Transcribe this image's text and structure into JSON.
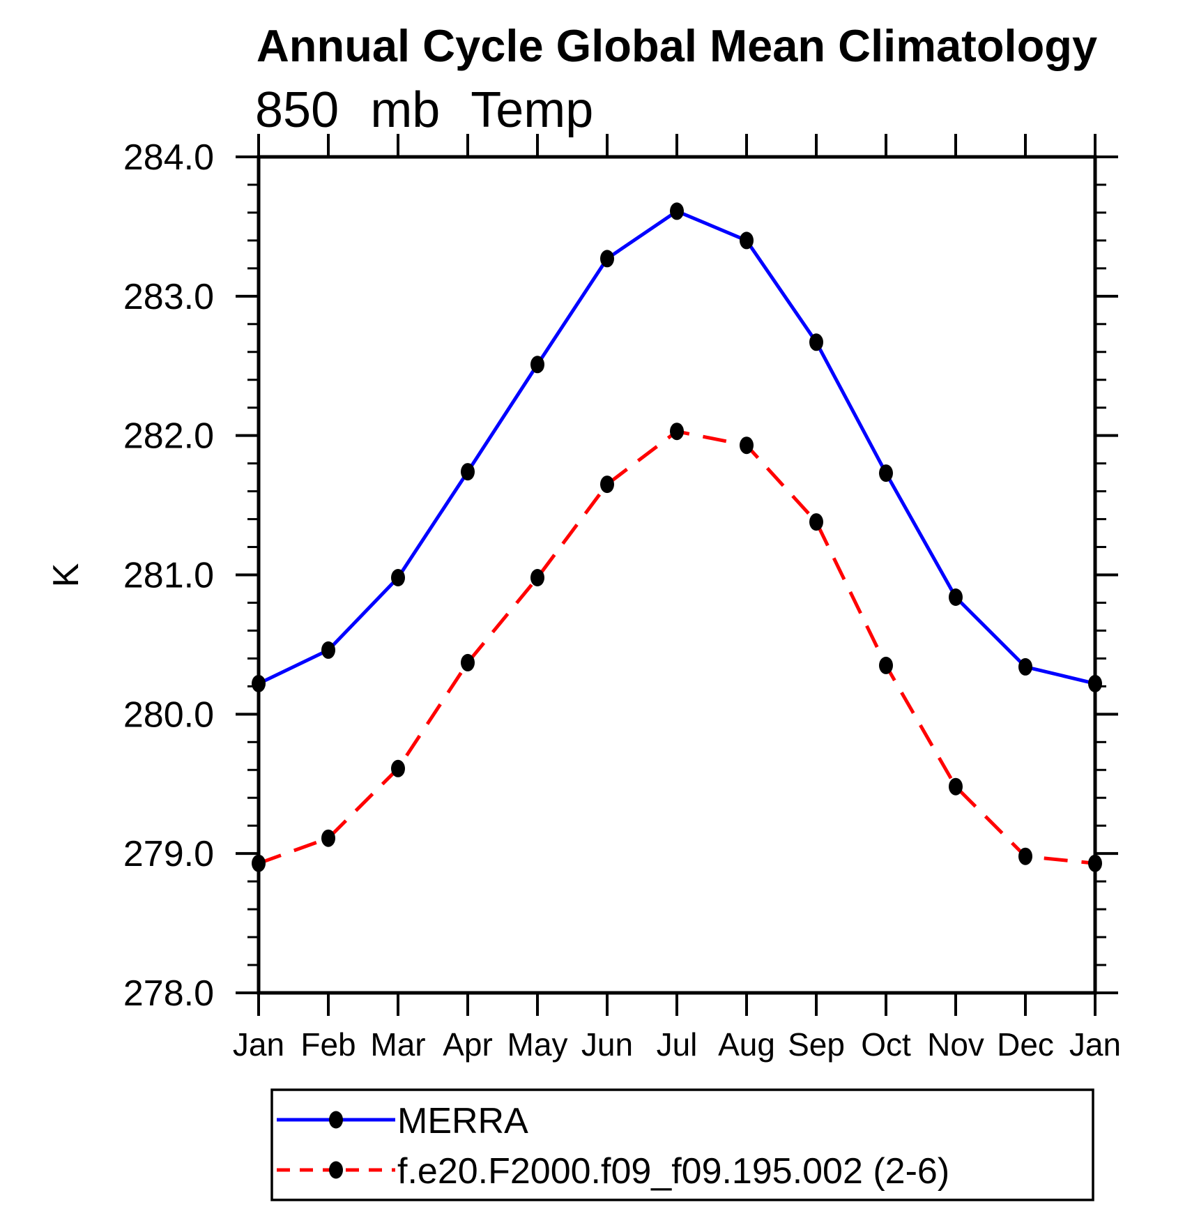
{
  "page": {
    "background": "#ffffff"
  },
  "chart_data": {
    "type": "line",
    "title": "Annual Cycle Global Mean Climatology",
    "subtitle": "850 mb Temp",
    "ylabel": "K",
    "x_categories": [
      "Jan",
      "Feb",
      "Mar",
      "Apr",
      "May",
      "Jun",
      "Jul",
      "Aug",
      "Sep",
      "Oct",
      "Nov",
      "Dec",
      "Jan"
    ],
    "ylim": [
      278.0,
      284.0
    ],
    "y_major_tick_labels": [
      "278.0",
      "279.0",
      "280.0",
      "281.0",
      "282.0",
      "283.0",
      "284.0"
    ],
    "y_minor_step": 0.2,
    "grid": false,
    "legend_position": "bottom-box",
    "axis_color": "#000000",
    "series": [
      {
        "name": "MERRA",
        "line_color": "#0000ff",
        "line_style": "solid",
        "marker": "filled-circle",
        "marker_color": "#000000",
        "values": [
          280.22,
          280.46,
          280.98,
          281.74,
          282.51,
          283.27,
          283.61,
          283.4,
          282.67,
          281.73,
          280.84,
          280.34,
          280.22
        ]
      },
      {
        "name": "f.e20.F2000.f09_f09.195.002 (2-6)",
        "line_color": "#ff0000",
        "line_style": "dashed",
        "marker": "filled-circle",
        "marker_color": "#000000",
        "values": [
          278.93,
          279.11,
          279.61,
          280.37,
          280.98,
          281.65,
          282.03,
          281.93,
          281.38,
          280.35,
          279.48,
          278.98,
          278.93
        ]
      }
    ]
  }
}
